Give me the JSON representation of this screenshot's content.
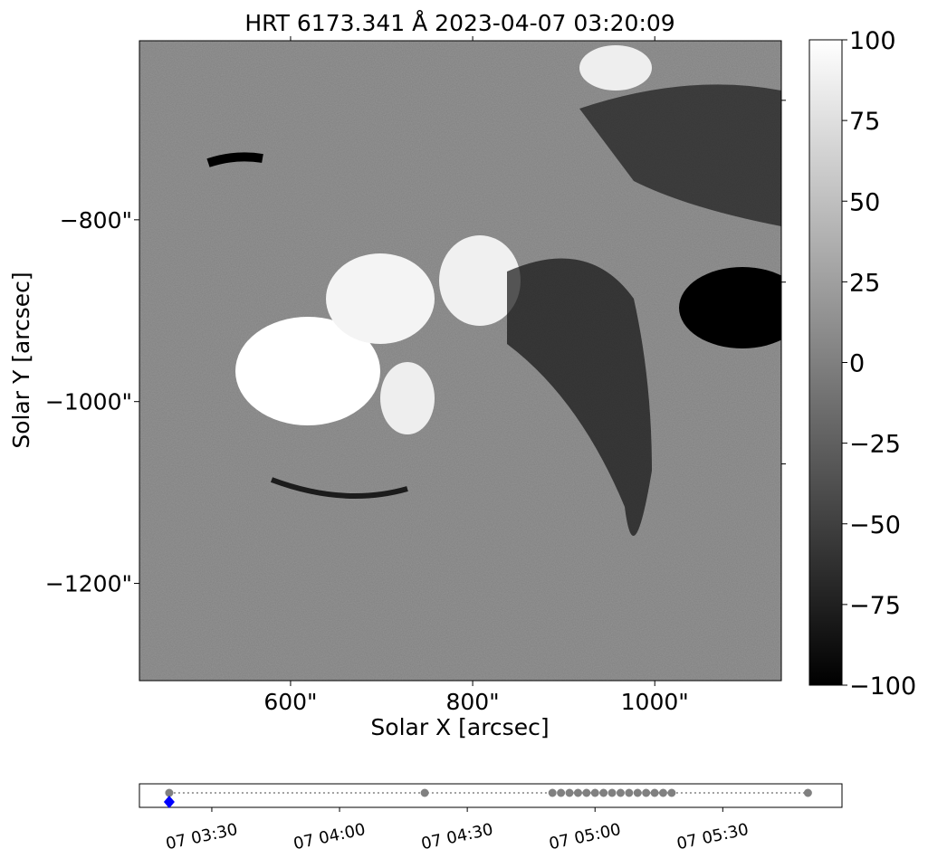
{
  "chart_data": [
    {
      "type": "image",
      "title": "HRT 6173.341 Å 2023-04-07 03:20:09",
      "xlabel": "Solar X [arcsec]",
      "ylabel": "Solar Y [arcsec]",
      "xlim": [
        434,
        1139
      ],
      "ylim": [
        -1307,
        -603
      ],
      "xticks": [
        {
          "value": 600,
          "label": "600\""
        },
        {
          "value": 800,
          "label": "800\""
        },
        {
          "value": 1000,
          "label": "1000\""
        }
      ],
      "yticks": [
        {
          "value": -800,
          "label": "−800\""
        },
        {
          "value": -1000,
          "label": "−1000\""
        },
        {
          "value": -1200,
          "label": "−1200\""
        }
      ],
      "colormap": "gray",
      "clim": [
        -100,
        100
      ],
      "cticks": [
        100,
        75,
        50,
        25,
        0,
        {
          "value": -25,
          "label": "−25"
        },
        {
          "value": -50,
          "label": "−50"
        },
        {
          "value": -75,
          "label": "−75"
        },
        {
          "value": -100,
          "label": "−100"
        }
      ]
    },
    {
      "type": "timeline",
      "color": "#808080",
      "current_color": "#0000ff",
      "current_index": 0,
      "x": [
        "07 03:20",
        "07 04:20",
        "07 04:50",
        "07 04:52",
        "07 04:54",
        "07 04:56",
        "07 04:58",
        "07 05:00",
        "07 05:02",
        "07 05:04",
        "07 05:06",
        "07 05:08",
        "07 05:10",
        "07 05:12",
        "07 05:14",
        "07 05:16",
        "07 05:18",
        "07 05:50"
      ],
      "xlim": [
        "07 03:13",
        "07 05:58"
      ],
      "xticks": [
        "07 03:30",
        "07 04:00",
        "07 04:30",
        "07 05:00",
        "07 05:30"
      ]
    }
  ]
}
